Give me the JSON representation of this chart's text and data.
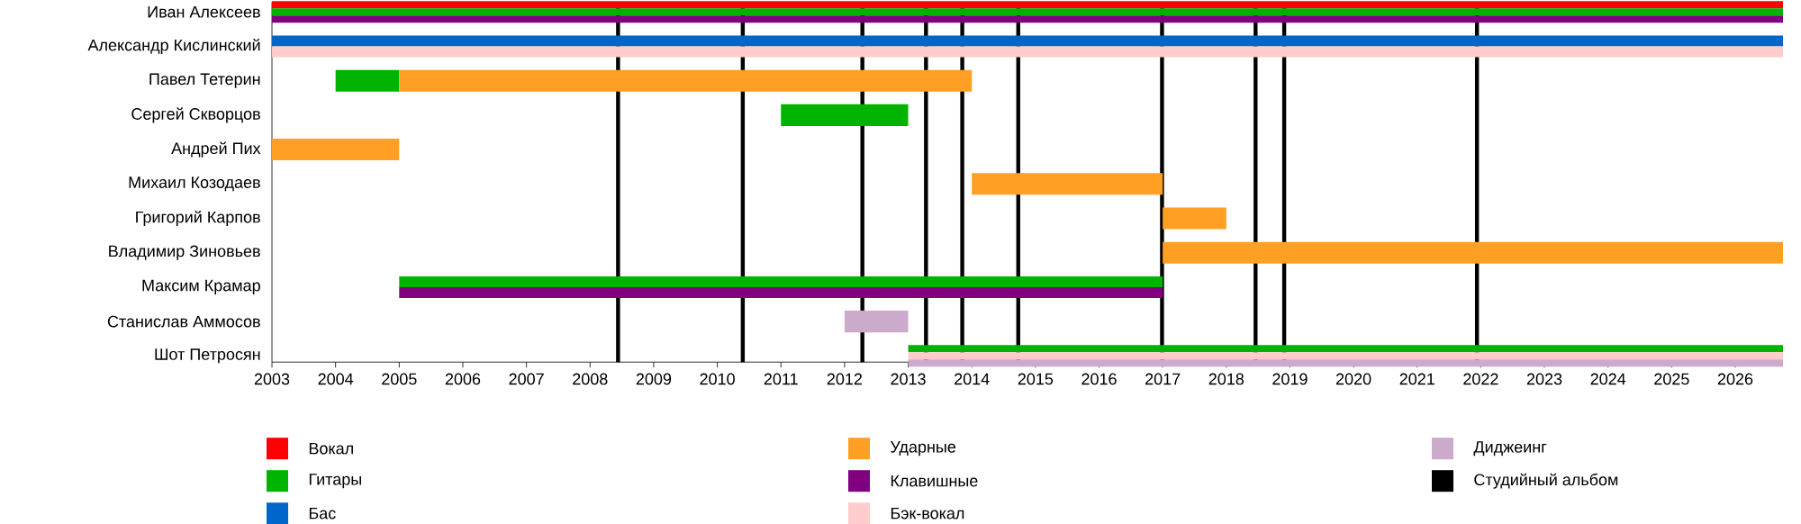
{
  "chart_data": {
    "type": "bar",
    "orientation": "horizontal",
    "legend": "bottom",
    "categories": [
      "Иван Алексеев",
      "Александр Кислинский",
      "Павел Тетерин",
      "Сергей Скворцов",
      "Андрей Пих",
      "Михаил Козодаев",
      "Григорий Карпов",
      "Владимир Зиновьев",
      "Максим Крамар",
      "Станислав Аммосов",
      "Шот Петросян"
    ],
    "xlim": [
      2003,
      2026.75
    ],
    "xticks": [
      2003,
      2004,
      2005,
      2006,
      2007,
      2008,
      2009,
      2010,
      2011,
      2012,
      2013,
      2014,
      2015,
      2016,
      2017,
      2018,
      2019,
      2020,
      2021,
      2022,
      2023,
      2024,
      2025,
      2026
    ],
    "series": [
      {
        "name": "Вокал",
        "color": "#ff0000",
        "base": [
          2003,
          null,
          null,
          null,
          null,
          null,
          null,
          null,
          null,
          null,
          null
        ],
        "values": [
          23.75,
          null,
          null,
          null,
          null,
          null,
          null,
          null,
          null,
          null,
          null
        ]
      },
      {
        "name": "Гитары",
        "color": "#00b300",
        "base": [
          2003,
          null,
          2004,
          2011,
          null,
          null,
          null,
          null,
          2005,
          null,
          2013
        ],
        "values": [
          23.75,
          null,
          1,
          2,
          null,
          null,
          null,
          null,
          12,
          null,
          13.75
        ]
      },
      {
        "name": "Бас",
        "color": "#0066cc",
        "base": [
          null,
          2003,
          null,
          null,
          null,
          null,
          null,
          null,
          null,
          null,
          null
        ],
        "values": [
          null,
          23.75,
          null,
          null,
          null,
          null,
          null,
          null,
          null,
          null,
          null
        ]
      },
      {
        "name": "Ударные",
        "color": "#ffa024",
        "base": [
          null,
          null,
          2005,
          null,
          2003,
          2014,
          2017,
          2017,
          null,
          null,
          null
        ],
        "values": [
          null,
          null,
          9,
          null,
          2,
          3,
          1,
          9.75,
          null,
          null,
          null
        ]
      },
      {
        "name": "Клавишные",
        "color": "#800080",
        "base": [
          2003,
          null,
          null,
          null,
          null,
          null,
          null,
          null,
          2005,
          null,
          null
        ],
        "values": [
          23.75,
          null,
          null,
          null,
          null,
          null,
          null,
          null,
          12,
          null,
          null
        ]
      },
      {
        "name": "Бэк-вокал",
        "color": "#ffcccc",
        "base": [
          null,
          2003,
          null,
          null,
          null,
          null,
          null,
          null,
          null,
          null,
          2013
        ],
        "values": [
          null,
          23.75,
          null,
          null,
          null,
          null,
          null,
          null,
          null,
          null,
          13.75
        ]
      },
      {
        "name": "Диджеинг",
        "color": "#ccaacc",
        "base": [
          null,
          null,
          null,
          null,
          null,
          null,
          null,
          null,
          null,
          2012,
          2013
        ],
        "values": [
          null,
          null,
          null,
          null,
          null,
          null,
          null,
          null,
          null,
          1,
          13.75
        ]
      }
    ],
    "ref_lines": [
      {
        "axis": "x",
        "value": 2008.44,
        "color": "#000000",
        "label": "Студийный альбом"
      },
      {
        "axis": "x",
        "value": 2010.4,
        "color": "#000000"
      },
      {
        "axis": "x",
        "value": 2012.28,
        "color": "#000000"
      },
      {
        "axis": "x",
        "value": 2013.28,
        "color": "#000000"
      },
      {
        "axis": "x",
        "value": 2013.85,
        "color": "#000000"
      },
      {
        "axis": "x",
        "value": 2014.73,
        "color": "#000000"
      },
      {
        "axis": "x",
        "value": 2016.99,
        "color": "#000000"
      },
      {
        "axis": "x",
        "value": 2018.46,
        "color": "#000000"
      },
      {
        "axis": "x",
        "value": 2018.91,
        "color": "#000000"
      },
      {
        "axis": "x",
        "value": 2021.94,
        "color": "#000000"
      }
    ]
  }
}
